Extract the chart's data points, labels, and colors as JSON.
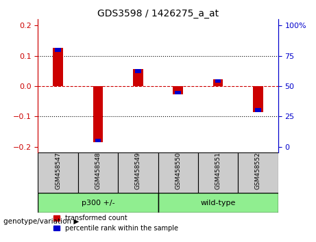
{
  "title": "GDS3598 / 1426275_a_at",
  "samples": [
    "GSM458547",
    "GSM458548",
    "GSM458549",
    "GSM458550",
    "GSM458551",
    "GSM458552"
  ],
  "red_values": [
    0.125,
    -0.185,
    0.055,
    -0.028,
    0.022,
    -0.085
  ],
  "blue_pct": [
    80,
    15,
    62,
    38,
    52,
    28
  ],
  "group_colors": [
    "#90EE90",
    "#90EE90"
  ],
  "ylim": [
    -0.22,
    0.22
  ],
  "pct_range": [
    0,
    100
  ],
  "yticks_left": [
    -0.2,
    -0.1,
    0.0,
    0.1,
    0.2
  ],
  "yticks_right": [
    0,
    25,
    50,
    75,
    100
  ],
  "left_color": "#cc0000",
  "right_color": "#0000cc",
  "red_bar_width": 0.25,
  "blue_bar_width": 0.15,
  "background_plot": "#ffffff",
  "background_label": "#cccccc",
  "zero_line_color": "#cc0000",
  "grid_color": "#000000",
  "legend_red": "transformed count",
  "legend_blue": "percentile rank within the sample",
  "genotype_label": "genotype/variation",
  "group1_label": "p300 +/-",
  "group2_label": "wild-type",
  "group1_range": [
    0,
    3
  ],
  "group2_range": [
    3,
    6
  ]
}
